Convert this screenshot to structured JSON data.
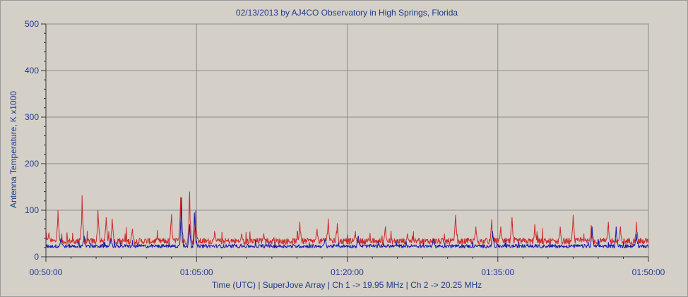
{
  "chart_data": {
    "type": "line",
    "title": "02/13/2013  by  AJ4CO Observatory  in  High Springs, Florida",
    "xlabel": "Time (UTC)   |   SuperJove Array   |   Ch 1 -> 19.95 MHz   |   Ch 2 -> 20.25 MHz",
    "ylabel": "Antenna Temperature, K x1000",
    "ylim": [
      0,
      500
    ],
    "yticks": [
      "0",
      "100",
      "200",
      "300",
      "400",
      "500"
    ],
    "xlim_minutes": [
      0,
      60
    ],
    "xticks": [
      "00:50:00",
      "01:05:00",
      "01:20:00",
      "01:35:00",
      "01:50:00"
    ],
    "grid": true,
    "series": [
      {
        "color": "#cc2a2a",
        "baseline": 32,
        "spikes": [
          {
            "t": 0.3,
            "v": 52
          },
          {
            "t": 1.2,
            "v": 100
          },
          {
            "t": 3.6,
            "v": 132
          },
          {
            "t": 5.2,
            "v": 100
          },
          {
            "t": 6.0,
            "v": 85
          },
          {
            "t": 6.6,
            "v": 82
          },
          {
            "t": 8.6,
            "v": 60
          },
          {
            "t": 12.5,
            "v": 92
          },
          {
            "t": 13.4,
            "v": 128
          },
          {
            "t": 14.3,
            "v": 140
          },
          {
            "t": 14.9,
            "v": 100
          },
          {
            "t": 16.8,
            "v": 55
          },
          {
            "t": 19.5,
            "v": 50
          },
          {
            "t": 21.7,
            "v": 50
          },
          {
            "t": 25.3,
            "v": 75
          },
          {
            "t": 27.0,
            "v": 60
          },
          {
            "t": 28.1,
            "v": 82
          },
          {
            "t": 29.0,
            "v": 72
          },
          {
            "t": 30.8,
            "v": 55
          },
          {
            "t": 33.8,
            "v": 65
          },
          {
            "t": 36.0,
            "v": 50
          },
          {
            "t": 40.8,
            "v": 90
          },
          {
            "t": 42.8,
            "v": 65
          },
          {
            "t": 44.4,
            "v": 80
          },
          {
            "t": 45.3,
            "v": 65
          },
          {
            "t": 46.4,
            "v": 85
          },
          {
            "t": 48.7,
            "v": 70
          },
          {
            "t": 51.2,
            "v": 65
          },
          {
            "t": 52.5,
            "v": 90
          },
          {
            "t": 54.3,
            "v": 68
          },
          {
            "t": 56.0,
            "v": 75
          },
          {
            "t": 57.2,
            "v": 65
          },
          {
            "t": 58.8,
            "v": 75
          }
        ]
      },
      {
        "color": "#1a1aa8",
        "baseline": 22,
        "spikes": [
          {
            "t": 1.5,
            "v": 40
          },
          {
            "t": 3.8,
            "v": 45
          },
          {
            "t": 6.5,
            "v": 40
          },
          {
            "t": 13.5,
            "v": 128
          },
          {
            "t": 14.3,
            "v": 70
          },
          {
            "t": 14.8,
            "v": 95
          },
          {
            "t": 27.8,
            "v": 40
          },
          {
            "t": 31.1,
            "v": 45
          },
          {
            "t": 38.6,
            "v": 40
          },
          {
            "t": 44.5,
            "v": 55
          },
          {
            "t": 54.4,
            "v": 65
          },
          {
            "t": 56.8,
            "v": 65
          },
          {
            "t": 58.8,
            "v": 50
          }
        ]
      }
    ]
  }
}
